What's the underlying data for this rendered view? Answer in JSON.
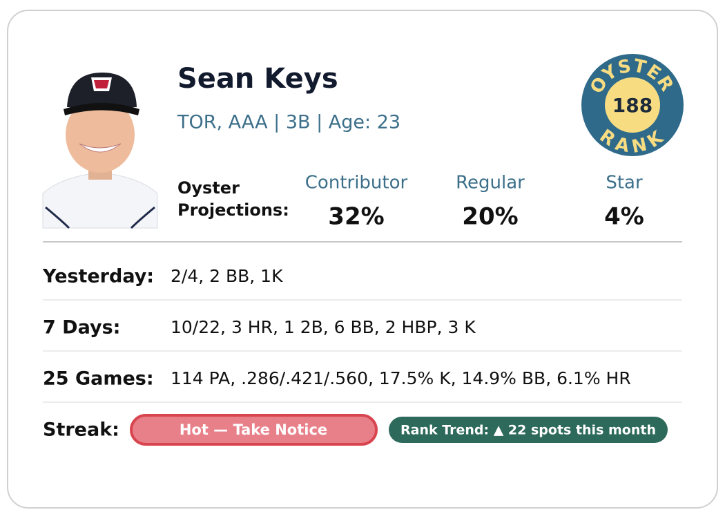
{
  "player": {
    "name": "Sean Keys",
    "details": "TOR, AAA | 3B | Age: 23"
  },
  "badge": {
    "top": "OYSTER",
    "number": "188",
    "bottom": "RANK"
  },
  "projections": {
    "label_line1": "Oyster",
    "label_line2": "Projections:",
    "items": [
      {
        "label": "Contributor",
        "value": "32%"
      },
      {
        "label": "Regular",
        "value": "20%"
      },
      {
        "label": "Star",
        "value": "4%"
      }
    ]
  },
  "stats": [
    {
      "label": "Yesterday:",
      "value": "2/4, 2 BB, 1K"
    },
    {
      "label": "7 Days:",
      "value": "10/22, 3 HR, 1 2B, 6 BB, 2 HBP, 3 K"
    },
    {
      "label": "25 Games:",
      "value": "114 PA, .286/.421/.560, 17.5% K, 14.9% BB, 6.1% HR"
    }
  ],
  "streak": {
    "label": "Streak:",
    "status": "Hot — Take Notice",
    "trend": "Rank Trend: ▲ 22 spots this month"
  }
}
